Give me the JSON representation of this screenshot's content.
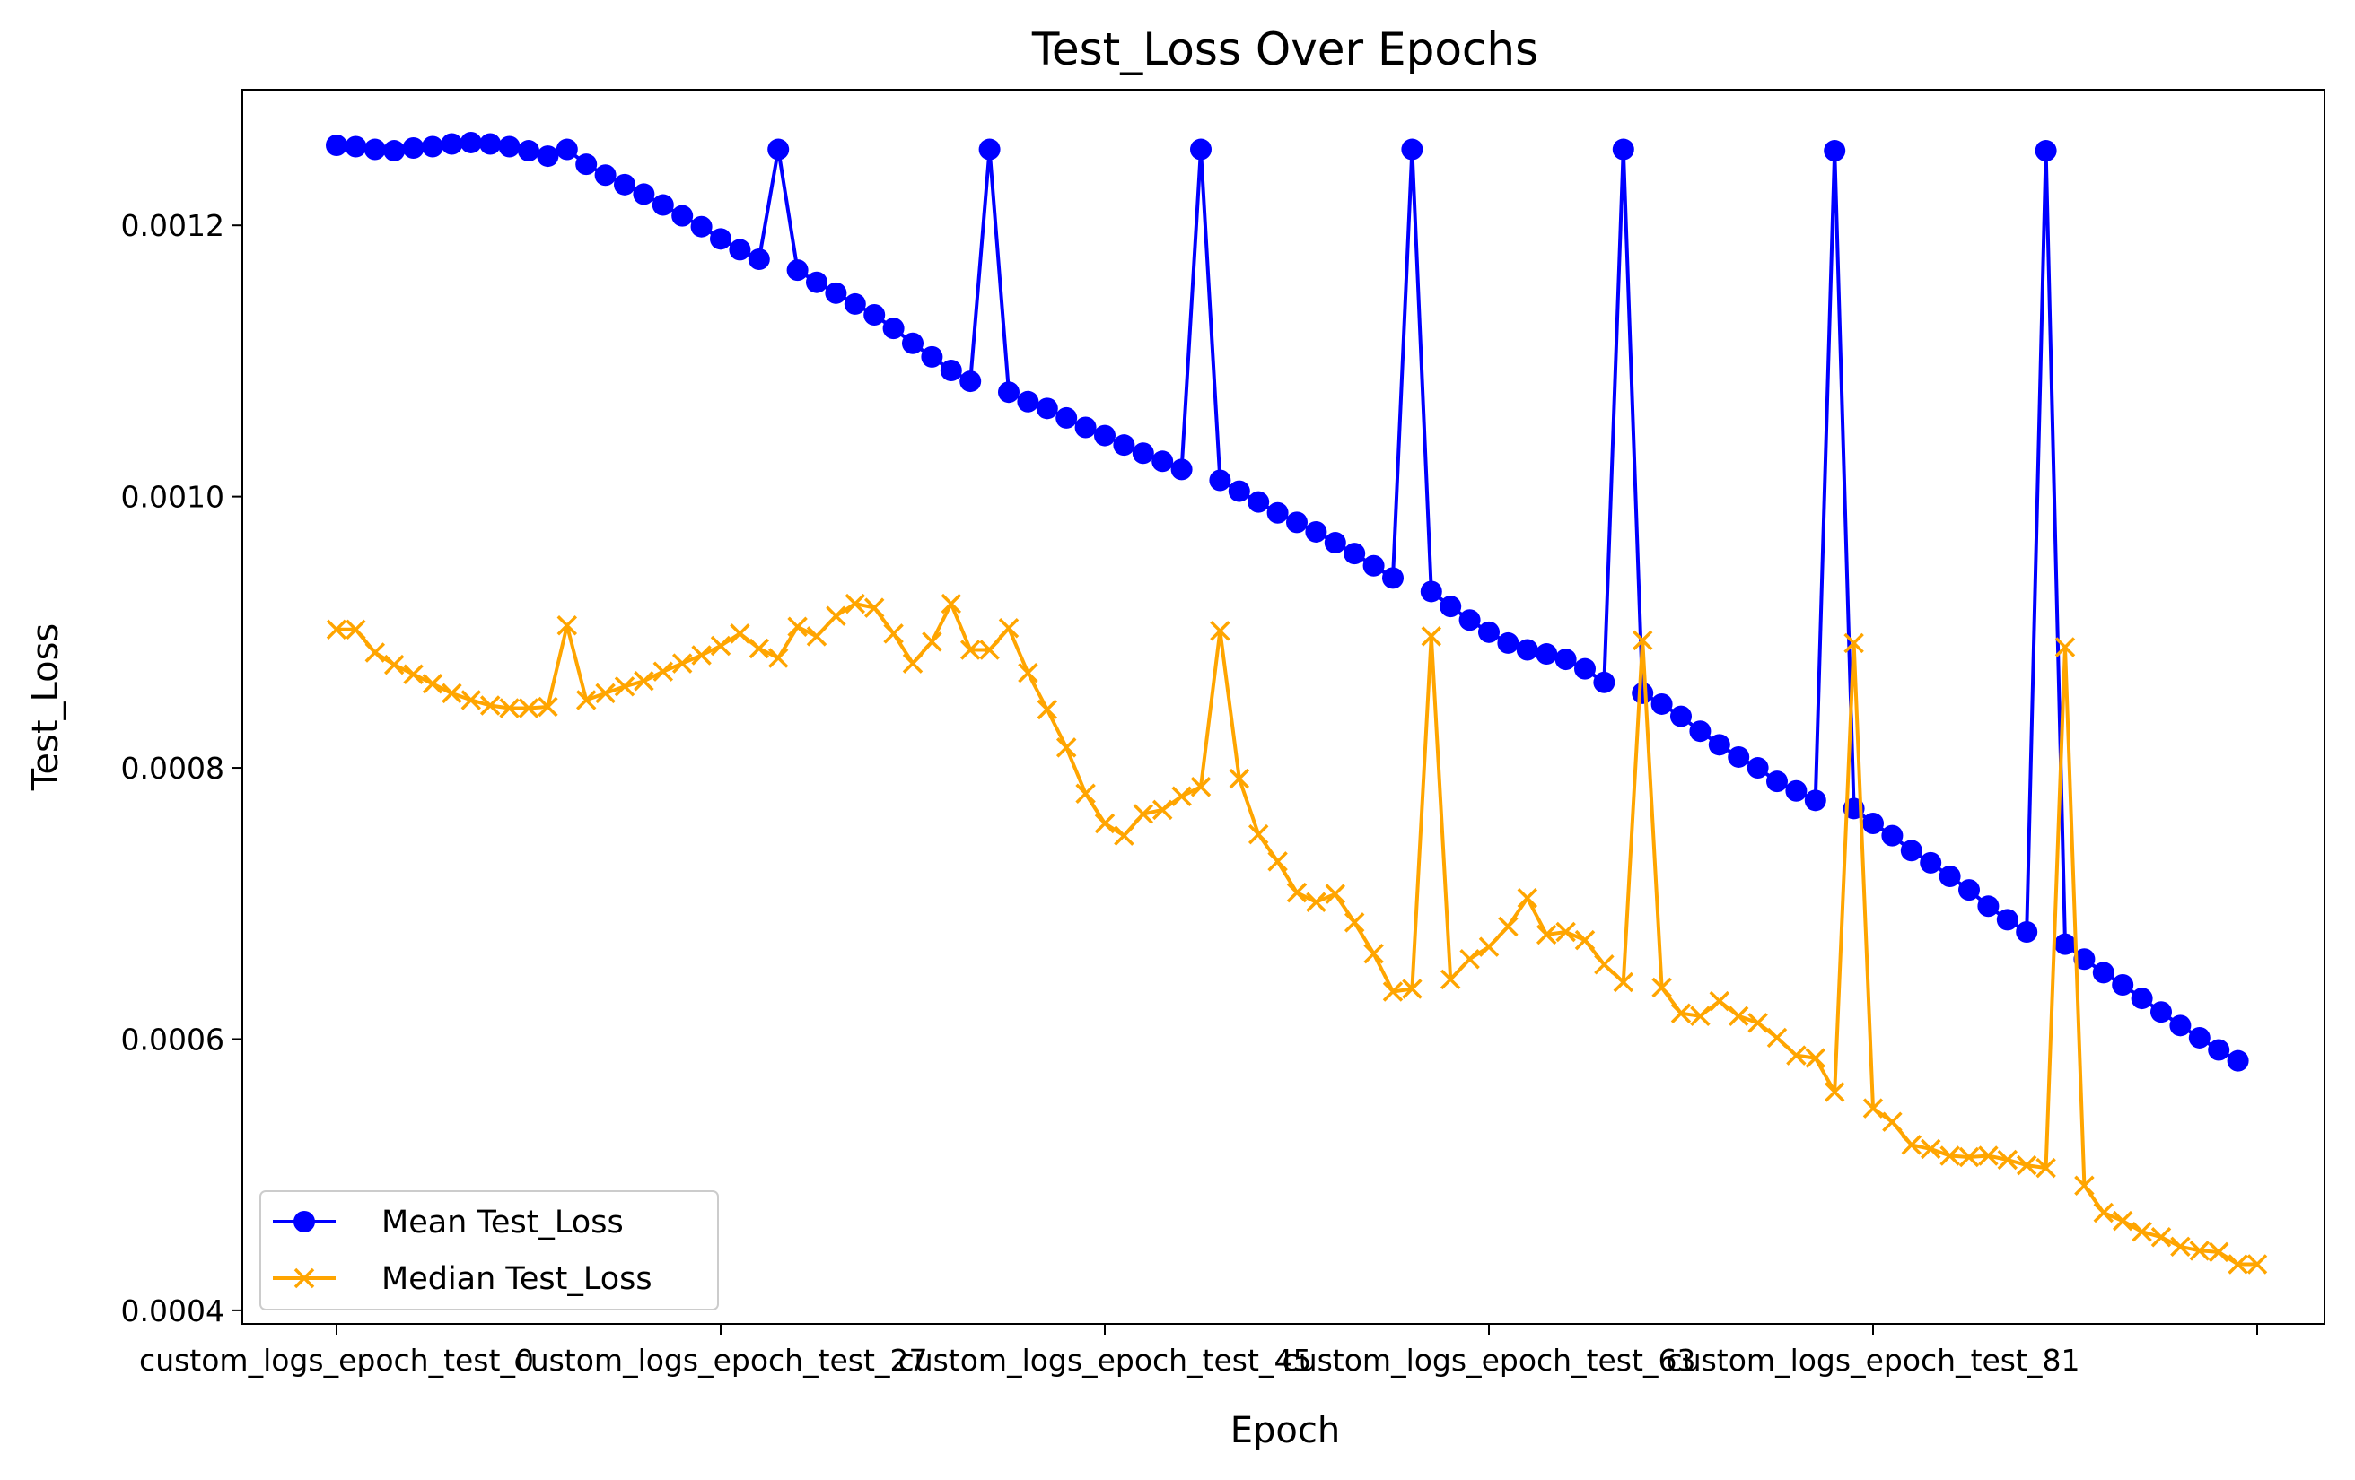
{
  "chart_data": {
    "type": "line",
    "title": "Test_Loss Over Epochs",
    "xlabel": "Epoch",
    "ylabel": "Test_Loss",
    "x_tick_labels": [
      "custom_logs_epoch_test_0",
      "custom_logs_epoch_test_27",
      "custom_logs_epoch_test_45",
      "custom_logs_epoch_test_63",
      "custom_logs_epoch_test_81",
      ""
    ],
    "y_ticks": [
      "0.0004",
      "0.0006",
      "0.0008",
      "0.0010",
      "0.0012"
    ],
    "ylim": [
      0.00039,
      0.0013
    ],
    "grid": false,
    "legend_position": "lower-left",
    "series": [
      {
        "name": "Mean Test_Loss",
        "color": "#0000ff",
        "marker": "circle",
        "values": [
          0.001259,
          0.001258,
          0.001256,
          0.001255,
          0.001257,
          0.001258,
          0.00126,
          0.001261,
          0.00126,
          0.001258,
          0.001255,
          0.001251,
          0.001256,
          0.001245,
          0.001237,
          0.00123,
          0.001223,
          0.001215,
          0.001207,
          0.001199,
          0.00119,
          0.001182,
          0.001175,
          0.001256,
          0.001167,
          0.001158,
          0.00115,
          0.001142,
          0.001134,
          0.001124,
          0.001113,
          0.001103,
          0.001093,
          0.001085,
          0.001256,
          0.001077,
          0.00107,
          0.001065,
          0.001058,
          0.001051,
          0.001045,
          0.001038,
          0.001032,
          0.001026,
          0.00102,
          0.001256,
          0.001012,
          0.001004,
          0.000996,
          0.000988,
          0.000981,
          0.000974,
          0.000966,
          0.000958,
          0.000949,
          0.00094,
          0.001256,
          0.00093,
          0.000919,
          0.000909,
          0.0009,
          0.000892,
          0.000887,
          0.000884,
          0.00088,
          0.000873,
          0.000863,
          0.001256,
          0.000855,
          0.000847,
          0.000838,
          0.000827,
          0.000817,
          0.000808,
          0.0008,
          0.00079,
          0.000783,
          0.000776,
          0.001255,
          0.00077,
          0.000759,
          0.00075,
          0.000739,
          0.00073,
          0.00072,
          0.00071,
          0.000698,
          0.000688,
          0.000679,
          0.001255,
          0.00067,
          0.000659,
          0.000649,
          0.00064,
          0.00063,
          0.00062,
          0.00061,
          0.000601,
          0.000592,
          0.000584
        ]
      },
      {
        "name": "Median Test_Loss",
        "color": "#ffa500",
        "marker": "x",
        "values": [
          0.000902,
          0.000902,
          0.000885,
          0.000876,
          0.000869,
          0.000862,
          0.000855,
          0.00085,
          0.000846,
          0.000844,
          0.000844,
          0.000845,
          0.000905,
          0.00085,
          0.000855,
          0.00086,
          0.000864,
          0.000871,
          0.000877,
          0.000883,
          0.00089,
          0.000899,
          0.000888,
          0.000881,
          0.000904,
          0.000897,
          0.000912,
          0.000921,
          0.000918,
          0.000899,
          0.000877,
          0.000893,
          0.000921,
          0.000887,
          0.000887,
          0.000903,
          0.00087,
          0.000843,
          0.000815,
          0.000781,
          0.000759,
          0.00075,
          0.000766,
          0.000769,
          0.000779,
          0.000786,
          0.000901,
          0.000792,
          0.000751,
          0.000731,
          0.000708,
          0.000701,
          0.000707,
          0.000686,
          0.000663,
          0.000635,
          0.000637,
          0.000897,
          0.000644,
          0.000659,
          0.000668,
          0.000683,
          0.000704,
          0.000677,
          0.000679,
          0.000673,
          0.000655,
          0.000642,
          0.000894,
          0.000638,
          0.000619,
          0.000617,
          0.000628,
          0.000617,
          0.000612,
          0.000601,
          0.000588,
          0.000586,
          0.000561,
          0.000892,
          0.000549,
          0.000539,
          0.000522,
          0.000519,
          0.000514,
          0.000513,
          0.000514,
          0.000511,
          0.000507,
          0.000505,
          0.000889,
          0.000492,
          0.000472,
          0.000466,
          0.000458,
          0.000454,
          0.000447,
          0.000444,
          0.000443,
          0.000434,
          0.000434
        ]
      }
    ]
  }
}
